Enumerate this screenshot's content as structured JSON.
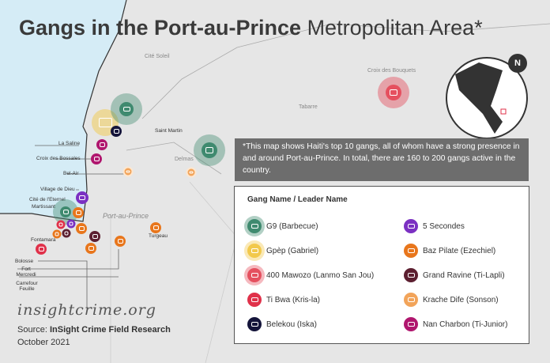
{
  "title": {
    "bold": "Gangs in the Port-au-Prince",
    "regular": " Metropolitan Area*"
  },
  "places": {
    "cite_soleil": "Cité Soleil",
    "croix_bouquets": "Croix des Bouquets",
    "tabarre": "Tabarre",
    "saint_martin": "Saint Martin",
    "delmas": "Delmas",
    "la_saline": "La Saline",
    "croix_bossales": "Croix des Bossales",
    "bel_air": "Bel-Air",
    "village_dieu": "Village de Dieu",
    "cite_eternel": "Cité de l'Eternel",
    "martissant": "Martissant",
    "port_au_prince": "Port-au-Prince",
    "turgeau": "Turgeau",
    "fontamara": "Fontamara",
    "bolosse": "Bolosse",
    "fort_mercredi": "Fort Mercredi",
    "carrefour_feuille": "Carrefour Feuille"
  },
  "note": "*This map shows Haiti's top 10 gangs, all of whom have a strong presence in and around Port-au-Prince. In total, there are 160 to 200 gangs active in the country.",
  "legend": {
    "heading": "Gang Name / Leader Name",
    "items": [
      {
        "label": "G9 (Barbecue)",
        "color": "#3f8a6f"
      },
      {
        "label": "Gpèp (Gabriel)",
        "color": "#f2c94c"
      },
      {
        "label": "400 Mawozo (Lanmo San Jou)",
        "color": "#e5505f"
      },
      {
        "label": "Ti Bwa (Kris-la)",
        "color": "#e0314a"
      },
      {
        "label": "Belekou (Iska)",
        "color": "#14143a"
      },
      {
        "label": "5 Secondes",
        "color": "#7b30c2"
      },
      {
        "label": "Baz Pilate (Ezechiel)",
        "color": "#e8761c"
      },
      {
        "label": "Grand Ravine (Ti-Lapli)",
        "color": "#5c1f30"
      },
      {
        "label": "Krache Dife (Sonson)",
        "color": "#f2a45a"
      },
      {
        "label": "Nan Charbon (Ti-Junior)",
        "color": "#b0166e"
      }
    ]
  },
  "compass": "N",
  "brand": "insightcrime.org",
  "source_label": "Source: ",
  "source": "InSight Crime Field Research",
  "date": "October 2021"
}
